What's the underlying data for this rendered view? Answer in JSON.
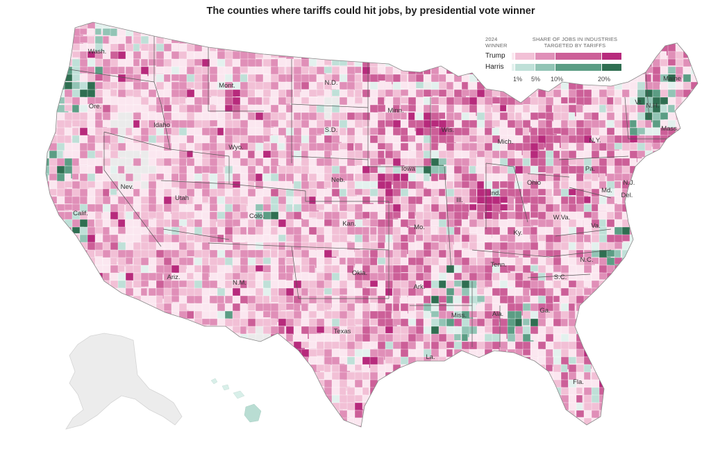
{
  "title": "The counties where tariffs could hit jobs, by presidential vote winner",
  "legend": {
    "winner_heading": [
      "2024",
      "WINNER"
    ],
    "share_heading": [
      "SHARE OF JOBS IN INDUSTRIES",
      "TARGETED BY TARIFFS"
    ],
    "rows": [
      {
        "label": "Trump",
        "colors": [
          "#fbe7f0",
          "#f2c0d6",
          "#e08fb8",
          "#cc5f98",
          "#b72a7c"
        ]
      },
      {
        "label": "Harris",
        "colors": [
          "#e3f1ee",
          "#bfe0d8",
          "#92c4b5",
          "#5b9d84",
          "#2f6e51"
        ]
      }
    ],
    "ticks": [
      "1%",
      "5%",
      "10%",
      "20%"
    ]
  },
  "state_labels": [
    "Wash.",
    "Ore.",
    "Calif.",
    "Nev.",
    "Idaho",
    "Mont.",
    "Wyo.",
    "Utah",
    "Ariz.",
    "Colo.",
    "N.M.",
    "N.D.",
    "S.D.",
    "Neb.",
    "Kan.",
    "Okla.",
    "Texas",
    "Minn.",
    "Iowa",
    "Mo.",
    "Ark.",
    "La.",
    "Wis.",
    "Ill.",
    "Miss.",
    "Mich.",
    "Ind.",
    "Ky.",
    "Tenn.",
    "Ala.",
    "Ohio",
    "Ga.",
    "Fla.",
    "W.Va.",
    "Va.",
    "N.C.",
    "S.C.",
    "Pa.",
    "N.Y.",
    "Md.",
    "Del.",
    "N.J.",
    "Vt.",
    "N.H.",
    "Maine",
    "Mass."
  ]
}
